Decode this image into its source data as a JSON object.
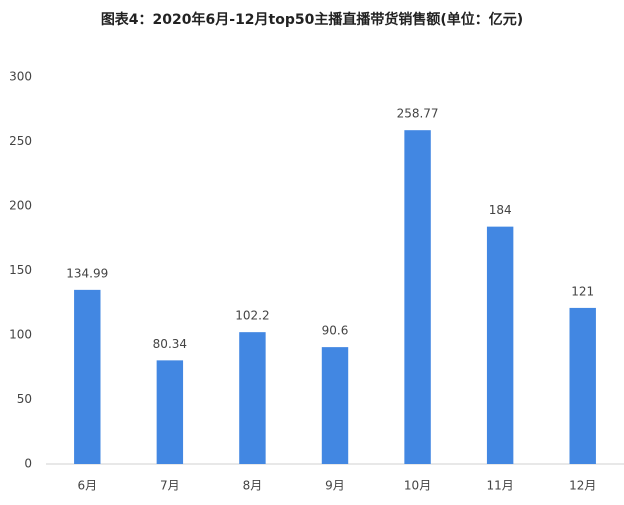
{
  "chart_data": {
    "type": "bar",
    "title": "图表4：2020年6月-12月top50主播直播带货销售额(单位：亿元)",
    "categories": [
      "6月",
      "7月",
      "8月",
      "9月",
      "10月",
      "11月",
      "12月"
    ],
    "values": [
      134.99,
      80.34,
      102.2,
      90.6,
      258.77,
      184,
      121
    ],
    "color": "#4287e2",
    "ylim": [
      0,
      300
    ],
    "yticks": [
      0,
      50,
      100,
      150,
      200,
      250,
      300
    ],
    "grid": false
  }
}
